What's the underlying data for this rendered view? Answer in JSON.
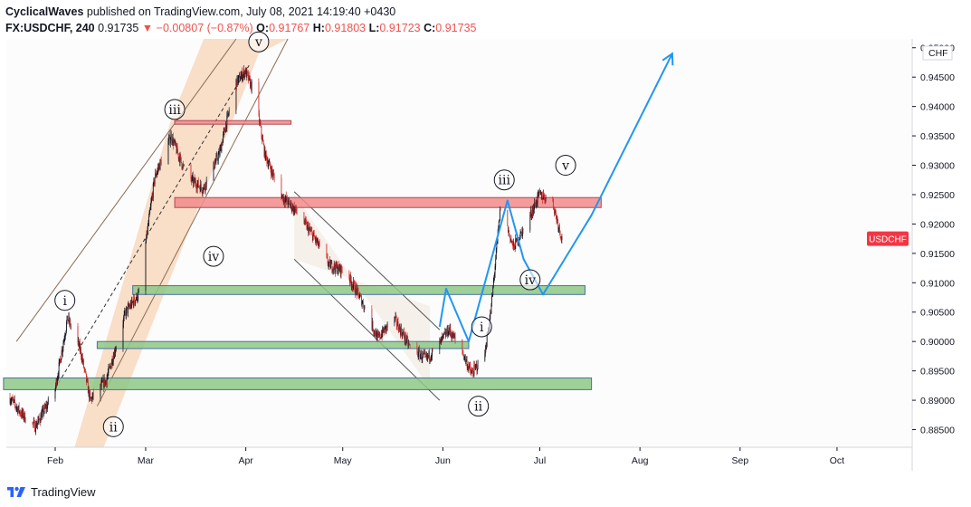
{
  "header": {
    "author": "CyclicalWaves",
    "published_text": "published on TradingView.com, July 08, 2021 14:19:40 +0430",
    "symbol": "FX:USDCHF, 240",
    "last": "0.91735",
    "change": "−0.00807 (−0.87%)",
    "o_label": "O:",
    "o_value": "0.91767",
    "h_label": "H:",
    "h_value": "0.91803",
    "l_label": "L:",
    "l_value": "0.91723",
    "c_label": "C:",
    "c_value": "0.91735"
  },
  "footer": {
    "brand": "TradingView"
  },
  "colors": {
    "up": "#131722",
    "down": "#d32f2f",
    "arrow": "#2196f3",
    "channel_fill": "#f6c59c",
    "resistance_fill": "#f28b8b",
    "support_fill": "#8ec885",
    "price_tag": "#f23645"
  },
  "chart_data": {
    "type": "candlestick",
    "symbol": "USDCHF",
    "currency_label": "CHF",
    "current_price_tag": "USDCHF",
    "y_ticks": [
      "0.95000",
      "0.94500",
      "0.94000",
      "0.93500",
      "0.93000",
      "0.92500",
      "0.92000",
      "0.91500",
      "0.91000",
      "0.90500",
      "0.90000",
      "0.89500",
      "0.89000",
      "0.88500"
    ],
    "ylim": [
      0.882,
      0.9515
    ],
    "x_ticks": [
      "Feb",
      "Mar",
      "Apr",
      "May",
      "Jun",
      "Jul",
      "Aug",
      "Sep",
      "Oct"
    ],
    "price_path": [
      [
        "2021-01-18",
        0.8905
      ],
      [
        "2021-01-22",
        0.8875
      ],
      [
        "2021-01-26",
        0.8855
      ],
      [
        "2021-02-01",
        0.8915
      ],
      [
        "2021-02-05",
        0.904
      ],
      [
        "2021-02-09",
        0.8985
      ],
      [
        "2021-02-12",
        0.89
      ],
      [
        "2021-02-17",
        0.8935
      ],
      [
        "2021-02-23",
        0.905
      ],
      [
        "2021-02-27",
        0.908
      ],
      [
        "2021-03-04",
        0.928
      ],
      [
        "2021-03-09",
        0.935
      ],
      [
        "2021-03-14",
        0.928
      ],
      [
        "2021-03-19",
        0.926
      ],
      [
        "2021-03-24",
        0.932
      ],
      [
        "2021-03-29",
        0.944
      ],
      [
        "2021-04-01",
        0.946
      ],
      [
        "2021-04-04",
        0.942
      ],
      [
        "2021-04-07",
        0.932
      ],
      [
        "2021-04-12",
        0.925
      ],
      [
        "2021-04-17",
        0.922
      ],
      [
        "2021-04-22",
        0.918
      ],
      [
        "2021-04-27",
        0.913
      ],
      [
        "2021-05-02",
        0.912
      ],
      [
        "2021-05-07",
        0.907
      ],
      [
        "2021-05-12",
        0.9005
      ],
      [
        "2021-05-17",
        0.904
      ],
      [
        "2021-05-22",
        0.899
      ],
      [
        "2021-05-27",
        0.897
      ],
      [
        "2021-05-31",
        0.8995
      ],
      [
        "2021-06-03",
        0.902
      ],
      [
        "2021-06-07",
        0.8985
      ],
      [
        "2021-06-10",
        0.8945
      ],
      [
        "2021-06-14",
        0.8975
      ],
      [
        "2021-06-16",
        0.905
      ],
      [
        "2021-06-19",
        0.923
      ],
      [
        "2021-06-23",
        0.916
      ],
      [
        "2021-06-27",
        0.92
      ],
      [
        "2021-07-01",
        0.925
      ],
      [
        "2021-07-05",
        0.924
      ],
      [
        "2021-07-08",
        0.9175
      ]
    ],
    "zones": [
      {
        "label": "resistance",
        "low": 0.9228,
        "high": 0.9245,
        "from": "2021-03-10",
        "to": "2021-07-20"
      },
      {
        "label": "resistance-top",
        "low": 0.937,
        "high": 0.9376,
        "from": "2021-03-10",
        "to": "2021-04-15"
      },
      {
        "label": "support-1",
        "low": 0.908,
        "high": 0.9095,
        "from": "2021-02-25",
        "to": "2021-07-15"
      },
      {
        "label": "support-2",
        "low": 0.8988,
        "high": 0.9,
        "from": "2021-02-14",
        "to": "2021-06-09"
      },
      {
        "label": "support-3",
        "low": 0.8918,
        "high": 0.8938,
        "from": "2021-01-16",
        "to": "2021-07-17"
      }
    ],
    "projection_path": [
      [
        "2021-05-31",
        0.9025
      ],
      [
        "2021-06-02",
        0.909
      ],
      [
        "2021-06-09",
        0.9
      ],
      [
        "2021-06-21",
        0.924
      ],
      [
        "2021-06-26",
        0.914
      ],
      [
        "2021-07-02",
        0.908
      ],
      [
        "2021-07-17",
        0.9215
      ],
      [
        "2021-08-11",
        0.949
      ]
    ],
    "wave_labels": [
      {
        "text": "i",
        "date": "2021-02-04",
        "price": 0.907
      },
      {
        "text": "ii",
        "date": "2021-02-19",
        "price": 0.8855
      },
      {
        "text": "iii",
        "date": "2021-03-10",
        "price": 0.9395
      },
      {
        "text": "iv",
        "date": "2021-03-22",
        "price": 0.9145
      },
      {
        "text": "v",
        "date": "2021-04-05",
        "price": 0.951
      },
      {
        "text": "i",
        "date": "2021-06-13",
        "price": 0.9025
      },
      {
        "text": "ii",
        "date": "2021-06-12",
        "price": 0.889
      },
      {
        "text": "iii",
        "date": "2021-06-20",
        "price": 0.9275
      },
      {
        "text": "iv",
        "date": "2021-06-28",
        "price": 0.9105
      },
      {
        "text": "v",
        "date": "2021-07-09",
        "price": 0.93
      }
    ]
  }
}
